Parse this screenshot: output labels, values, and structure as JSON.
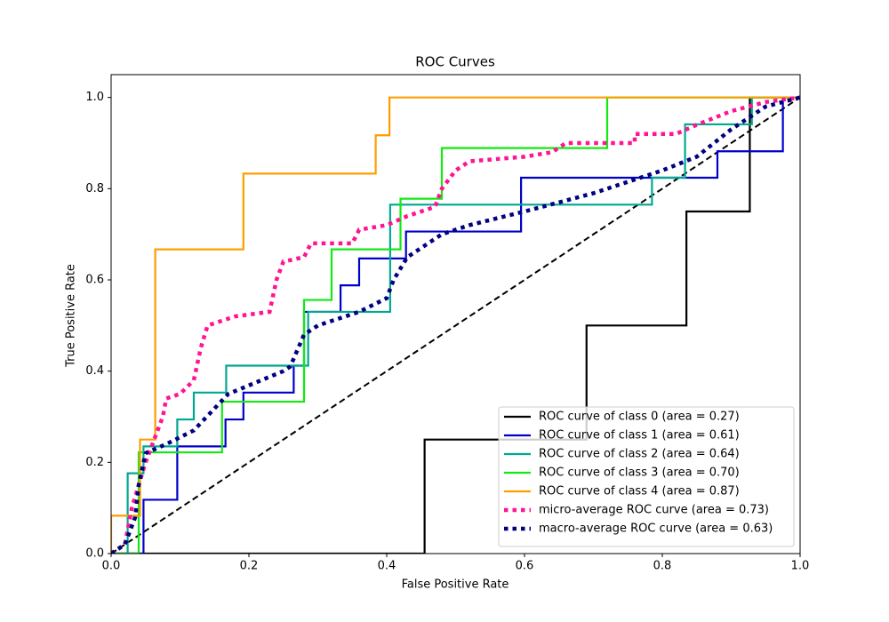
{
  "chart_data": {
    "type": "line",
    "title": "ROC Curves",
    "x_label": "False Positive Rate",
    "y_label": "True Positive Rate",
    "xlim": [
      0,
      1
    ],
    "ylim": [
      0,
      1.05
    ],
    "xticks": [
      {
        "value": 0,
        "label": "0.0"
      },
      0.2,
      0.4,
      0.6,
      0.8,
      {
        "value": 1,
        "label": "1.0"
      }
    ],
    "yticks": [
      {
        "value": 0,
        "label": "0.0"
      },
      0.2,
      0.4,
      0.6,
      0.8,
      {
        "value": 1,
        "label": "1.0"
      }
    ],
    "grid": false,
    "legend": "lower right",
    "series": [
      {
        "name": "ROC curve of class 0 (area = 0.27)",
        "color": "#000000",
        "style": "solid",
        "x": [
          0,
          0.455,
          0.455,
          0.69,
          0.69,
          0.835,
          0.835,
          0.927,
          0.927,
          1
        ],
        "values": [
          0,
          0,
          0.25,
          0.25,
          0.5,
          0.5,
          0.75,
          0.75,
          1,
          1
        ]
      },
      {
        "name": "ROC curve of class 1 (area = 0.61)",
        "color": "#0000cc",
        "style": "solid",
        "x": [
          0,
          0.047,
          0.047,
          0.096,
          0.096,
          0.166,
          0.166,
          0.192,
          0.192,
          0.265,
          0.265,
          0.28,
          0.28,
          0.333,
          0.333,
          0.36,
          0.36,
          0.428,
          0.428,
          0.595,
          0.595,
          0.88,
          0.88,
          0.975,
          0.975,
          1
        ],
        "values": [
          0,
          0,
          0.118,
          0.118,
          0.235,
          0.235,
          0.294,
          0.294,
          0.353,
          0.353,
          0.412,
          0.412,
          0.53,
          0.53,
          0.588,
          0.588,
          0.647,
          0.647,
          0.706,
          0.706,
          0.824,
          0.824,
          0.882,
          0.882,
          1,
          1
        ]
      },
      {
        "name": "ROC curve of class 2 (area = 0.64)",
        "color": "#00a891",
        "style": "solid",
        "x": [
          0,
          0.024,
          0.024,
          0.047,
          0.047,
          0.096,
          0.096,
          0.12,
          0.12,
          0.167,
          0.167,
          0.286,
          0.286,
          0.405,
          0.405,
          0.785,
          0.785,
          0.833,
          0.833,
          0.93,
          0.93,
          1
        ],
        "values": [
          0,
          0,
          0.176,
          0.176,
          0.235,
          0.235,
          0.294,
          0.294,
          0.353,
          0.353,
          0.412,
          0.412,
          0.53,
          0.53,
          0.765,
          0.765,
          0.824,
          0.824,
          0.941,
          0.941,
          1,
          1
        ]
      },
      {
        "name": "ROC curve of class 3 (area = 0.70)",
        "color": "#12ea12",
        "style": "solid",
        "x": [
          0,
          0.04,
          0.04,
          0.161,
          0.161,
          0.28,
          0.28,
          0.32,
          0.32,
          0.42,
          0.42,
          0.48,
          0.48,
          0.72,
          0.72,
          1
        ],
        "values": [
          0,
          0,
          0.222,
          0.222,
          0.333,
          0.333,
          0.556,
          0.556,
          0.667,
          0.667,
          0.778,
          0.778,
          0.889,
          0.889,
          1,
          1
        ]
      },
      {
        "name": "ROC curve of class 4 (area = 0.87)",
        "color": "#ff9d00",
        "style": "solid",
        "x": [
          0,
          0,
          0.042,
          0.042,
          0.064,
          0.064,
          0.192,
          0.192,
          0.384,
          0.384,
          0.404,
          0.404,
          1
        ],
        "values": [
          0,
          0.083,
          0.083,
          0.25,
          0.25,
          0.667,
          0.667,
          0.833,
          0.833,
          0.917,
          0.917,
          1,
          1
        ]
      },
      {
        "name": "micro-average ROC curve (area = 0.73)",
        "color": "#ff1493",
        "style": "dotted",
        "x": [
          0,
          0.02,
          0.03,
          0.04,
          0.05,
          0.06,
          0.075,
          0.08,
          0.1,
          0.12,
          0.13,
          0.14,
          0.18,
          0.23,
          0.24,
          0.25,
          0.28,
          0.29,
          0.35,
          0.36,
          0.4,
          0.43,
          0.47,
          0.48,
          0.5,
          0.52,
          0.6,
          0.64,
          0.66,
          0.76,
          0.76,
          0.82,
          0.85,
          0.9,
          0.95,
          1
        ],
        "values": [
          0,
          0.02,
          0.1,
          0.15,
          0.2,
          0.24,
          0.3,
          0.34,
          0.35,
          0.38,
          0.45,
          0.5,
          0.52,
          0.53,
          0.6,
          0.64,
          0.65,
          0.68,
          0.68,
          0.71,
          0.72,
          0.74,
          0.76,
          0.8,
          0.84,
          0.86,
          0.87,
          0.88,
          0.9,
          0.9,
          0.92,
          0.92,
          0.94,
          0.97,
          0.99,
          1
        ]
      },
      {
        "name": "macro-average ROC curve (area = 0.63)",
        "color": "#000080",
        "style": "dotted",
        "x": [
          0,
          0.02,
          0.035,
          0.04,
          0.05,
          0.08,
          0.12,
          0.17,
          0.25,
          0.26,
          0.28,
          0.3,
          0.36,
          0.4,
          0.41,
          0.43,
          0.48,
          0.52,
          0.6,
          0.7,
          0.8,
          0.85,
          0.9,
          0.95,
          1
        ],
        "values": [
          0,
          0.02,
          0.08,
          0.15,
          0.22,
          0.24,
          0.27,
          0.35,
          0.4,
          0.41,
          0.48,
          0.5,
          0.53,
          0.56,
          0.6,
          0.65,
          0.7,
          0.72,
          0.75,
          0.79,
          0.84,
          0.87,
          0.93,
          0.98,
          1
        ]
      }
    ]
  }
}
